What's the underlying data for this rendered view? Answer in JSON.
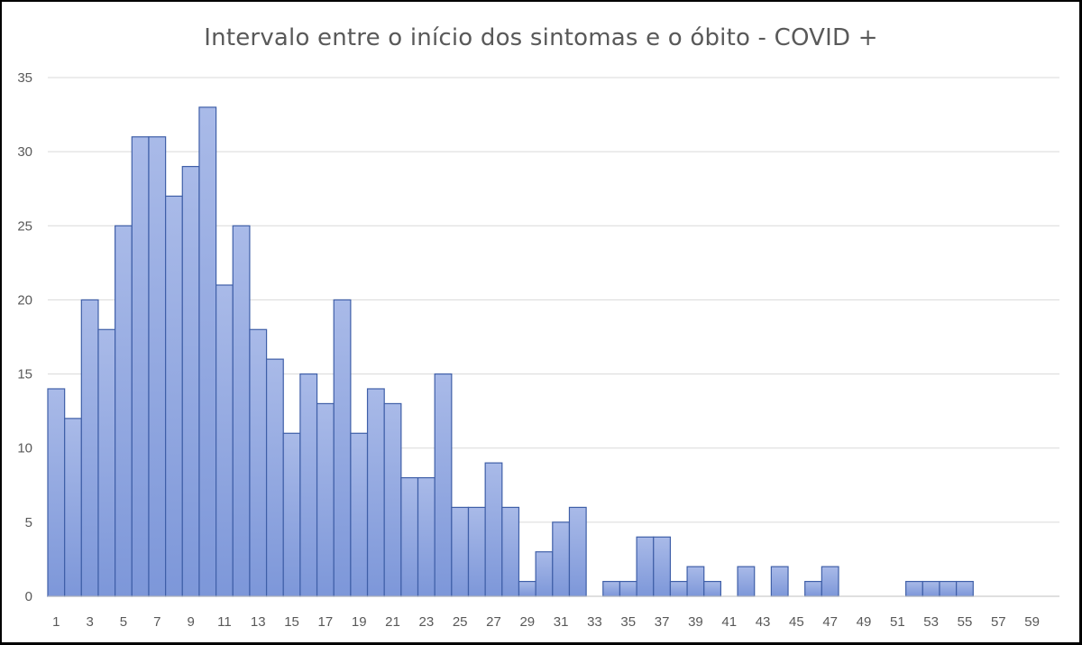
{
  "chart_data": {
    "type": "bar",
    "title": "Intervalo entre o início dos sintomas e o óbito - COVID +",
    "xlabel": "",
    "ylabel": "",
    "ylim": [
      0,
      35
    ],
    "yticks": [
      0,
      5,
      10,
      15,
      20,
      25,
      30,
      35
    ],
    "grid": true,
    "legend": "none",
    "bar_color": "#8fa6df",
    "bar_edge_color": "#3f5fa8",
    "categories": [
      1,
      2,
      3,
      4,
      5,
      6,
      7,
      8,
      9,
      10,
      11,
      12,
      13,
      14,
      15,
      16,
      17,
      18,
      19,
      20,
      21,
      22,
      23,
      24,
      25,
      26,
      27,
      28,
      29,
      30,
      31,
      32,
      33,
      34,
      35,
      36,
      37,
      38,
      39,
      40,
      41,
      42,
      43,
      44,
      45,
      46,
      47,
      48,
      49,
      50,
      51,
      52,
      53,
      54,
      55,
      56,
      57,
      58,
      59,
      60
    ],
    "xtick_labels": [
      "1",
      "3",
      "5",
      "7",
      "9",
      "11",
      "13",
      "15",
      "17",
      "19",
      "21",
      "23",
      "25",
      "27",
      "29",
      "31",
      "33",
      "35",
      "37",
      "39",
      "41",
      "43",
      "45",
      "47",
      "49",
      "51",
      "53",
      "55",
      "57",
      "59"
    ],
    "values": [
      14,
      12,
      20,
      18,
      25,
      31,
      31,
      27,
      29,
      33,
      21,
      25,
      18,
      16,
      11,
      15,
      13,
      20,
      11,
      14,
      13,
      8,
      8,
      15,
      6,
      6,
      9,
      6,
      1,
      3,
      5,
      6,
      0,
      1,
      1,
      4,
      4,
      1,
      2,
      1,
      0,
      2,
      0,
      2,
      0,
      1,
      2,
      0,
      0,
      0,
      0,
      1,
      1,
      1,
      1,
      0,
      0,
      0,
      0,
      0
    ]
  }
}
